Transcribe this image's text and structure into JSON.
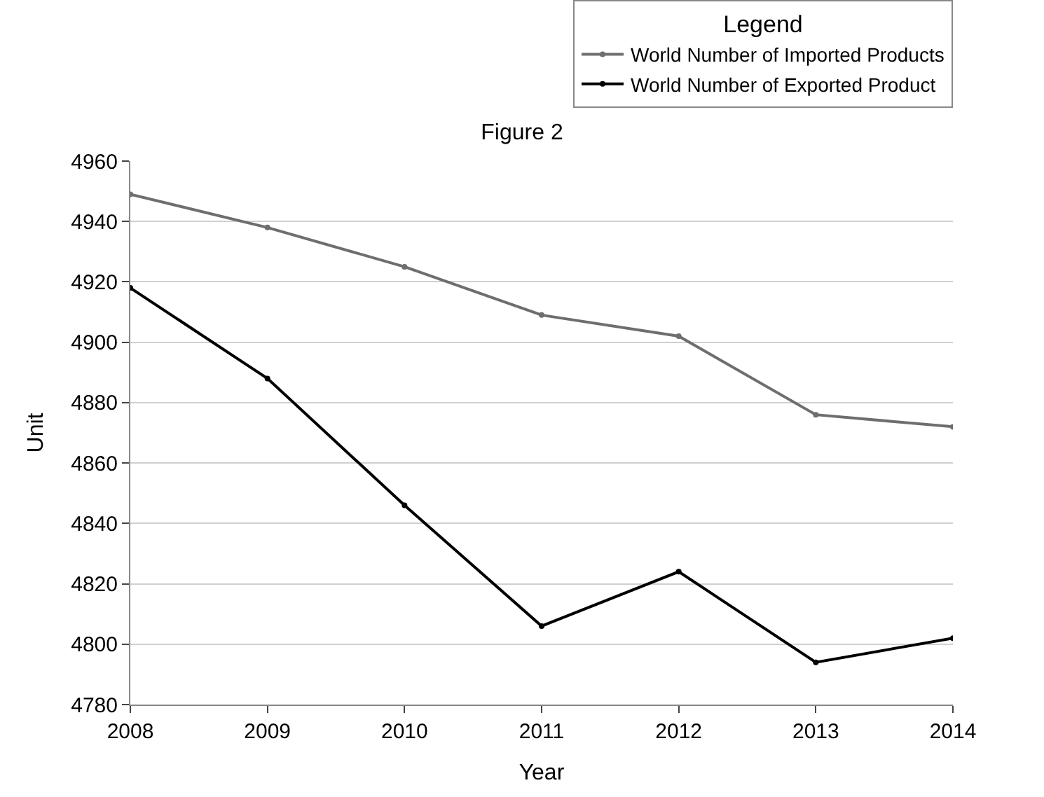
{
  "chart_data": {
    "type": "line",
    "title": "Figure 2",
    "xlabel": "Year",
    "ylabel": "Unit",
    "legend_title": "Legend",
    "x": [
      2008,
      2009,
      2010,
      2011,
      2012,
      2013,
      2014
    ],
    "series": [
      {
        "name": "World Number of Imported Products",
        "color": "#6e6e6e",
        "values": [
          4949,
          4938,
          4925,
          4909,
          4902,
          4876,
          4872
        ]
      },
      {
        "name": "World Number of Exported Product",
        "color": "#000000",
        "values": [
          4918,
          4888,
          4846,
          4806,
          4824,
          4794,
          4802
        ]
      }
    ],
    "xlim": [
      2008,
      2014
    ],
    "xticks": [
      2008,
      2009,
      2010,
      2011,
      2012,
      2013,
      2014
    ],
    "ylim": [
      4780,
      4960
    ],
    "yticks": [
      4780,
      4800,
      4820,
      4840,
      4860,
      4880,
      4900,
      4920,
      4940,
      4960
    ],
    "grid": "y",
    "legend": "top right",
    "marker": "circle",
    "line_style": "solid"
  }
}
